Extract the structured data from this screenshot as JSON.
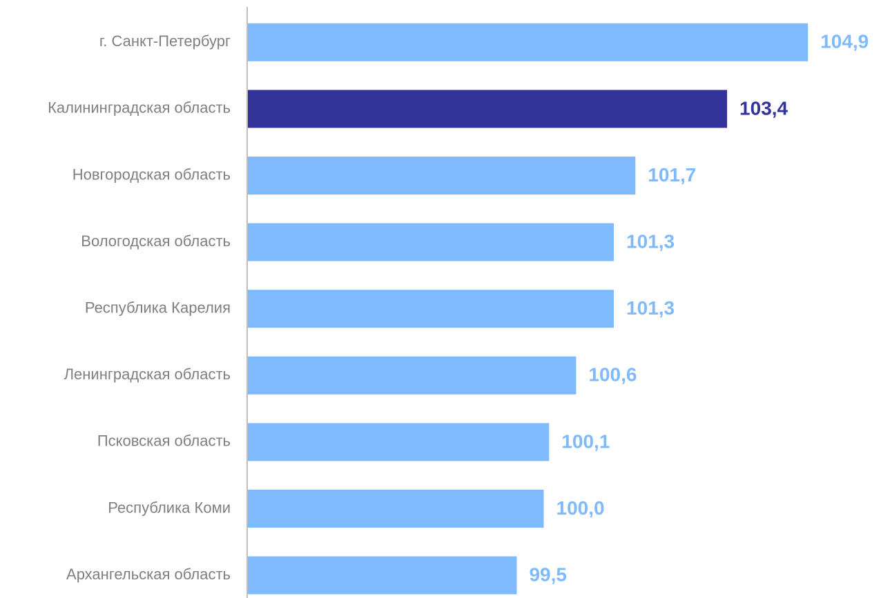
{
  "chart_data": {
    "type": "bar",
    "orientation": "horizontal",
    "categories": [
      "г. Санкт-Петербург",
      "Калининградская область",
      "Новгородская область",
      "Вологодская область",
      "Республика Карелия",
      "Ленинградская область",
      "Псковская область",
      "Республика Коми",
      "Архангельская область"
    ],
    "values": [
      104.9,
      103.4,
      101.7,
      101.3,
      101.3,
      100.6,
      100.1,
      100.0,
      99.5
    ],
    "value_labels": [
      "104,9",
      "103,4",
      "101,7",
      "101,3",
      "101,3",
      "100,6",
      "100,1",
      "100,0",
      "99,5"
    ],
    "highlight_index": 1,
    "xlim": [
      94.5,
      105.0
    ],
    "grid": false,
    "legend": "none",
    "title": "",
    "xlabel": "",
    "ylabel": "",
    "colors": {
      "bar": "#7fbaff",
      "highlight_bar": "#333399",
      "label": "#7fbaff",
      "highlight_label": "#333399",
      "category_text": "#7f7f7f",
      "axis": "#bfbfbf"
    }
  }
}
